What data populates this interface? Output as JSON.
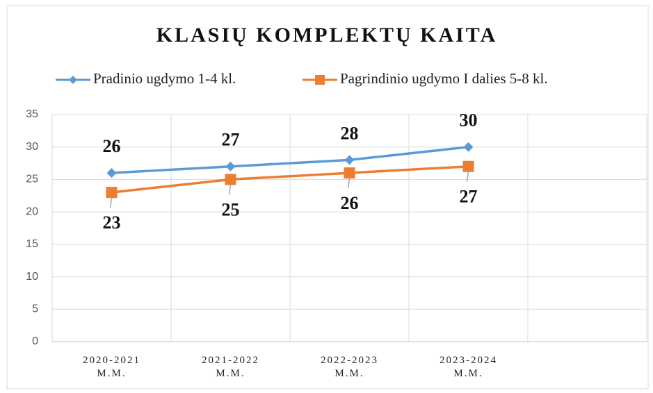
{
  "chart_data": {
    "type": "line",
    "title": "KLASIŲ KOMPLEKTŲ KAITA",
    "categories": [
      "2020-2021 M.M.",
      "2021-2022 M.M.",
      "2022-2023 M.M.",
      "2023-2024 M.M.",
      null
    ],
    "series": [
      {
        "name": "Pradinio ugdymo 1-4 kl.",
        "color": "#5b9bd5",
        "values": [
          26,
          27,
          28,
          30,
          null
        ]
      },
      {
        "name": "Pagrindinio ugdymo I dalies 5-8 kl.",
        "color": "#ed7d31",
        "values": [
          23,
          25,
          26,
          27,
          null
        ]
      }
    ],
    "ylim": [
      0,
      35
    ],
    "yticks": [
      0,
      5,
      10,
      15,
      20,
      25,
      30,
      35
    ],
    "grid": true,
    "legend": "top"
  }
}
